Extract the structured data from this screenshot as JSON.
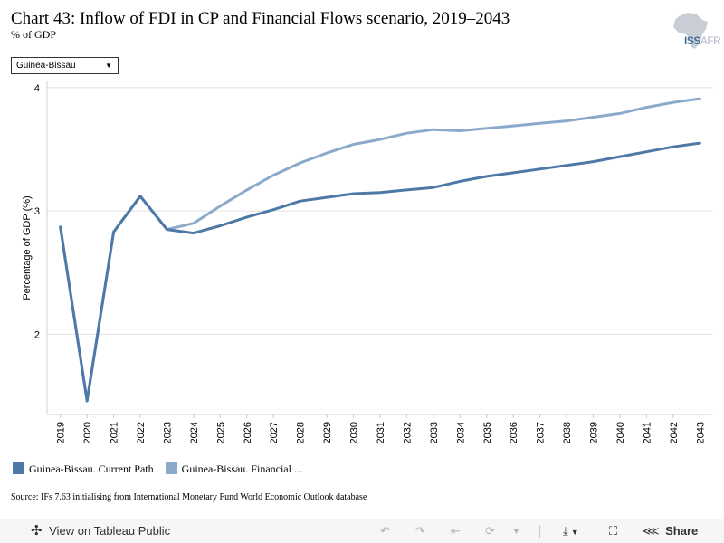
{
  "header": {
    "title": "Chart 43: Inflow of FDI in CP and Financial Flows scenario, 2019–2043",
    "subtitle": "% of GDP",
    "logo_text_iss": "ISS",
    "logo_text_afr": "AFR"
  },
  "filter": {
    "selected": "Guinea-Bissau"
  },
  "chart_data": {
    "type": "line",
    "x": [
      2019,
      2020,
      2021,
      2022,
      2023,
      2024,
      2025,
      2026,
      2027,
      2028,
      2029,
      2030,
      2031,
      2032,
      2033,
      2034,
      2035,
      2036,
      2037,
      2038,
      2039,
      2040,
      2041,
      2042,
      2043
    ],
    "series": [
      {
        "name": "Guinea-Bissau. Current Path",
        "color": "#4e79a7",
        "values": [
          2.87,
          1.46,
          2.83,
          3.12,
          2.85,
          2.82,
          2.88,
          2.95,
          3.01,
          3.08,
          3.11,
          3.14,
          3.15,
          3.17,
          3.19,
          3.24,
          3.28,
          3.31,
          3.34,
          3.37,
          3.4,
          3.44,
          3.48,
          3.52,
          3.55
        ]
      },
      {
        "name": "Guinea-Bissau. Financial ...",
        "color": "#8ba9cb",
        "values": [
          2.87,
          1.46,
          2.83,
          3.12,
          2.85,
          2.9,
          3.04,
          3.17,
          3.29,
          3.39,
          3.47,
          3.54,
          3.58,
          3.63,
          3.66,
          3.65,
          3.67,
          3.69,
          3.71,
          3.73,
          3.76,
          3.79,
          3.84,
          3.88,
          3.91
        ]
      }
    ],
    "ylabel": "Percentage of GDP (%)",
    "xlabel": "",
    "ylim": [
      1.35,
      4.05
    ],
    "yticks": [
      2,
      3,
      4
    ],
    "grid": true,
    "legend": "bottom"
  },
  "source": "Source: IFs 7.63 initialising from International Monetary Fund World Economic Outlook database",
  "toolbar": {
    "view_label": "View on Tableau Public",
    "share_label": "Share"
  }
}
